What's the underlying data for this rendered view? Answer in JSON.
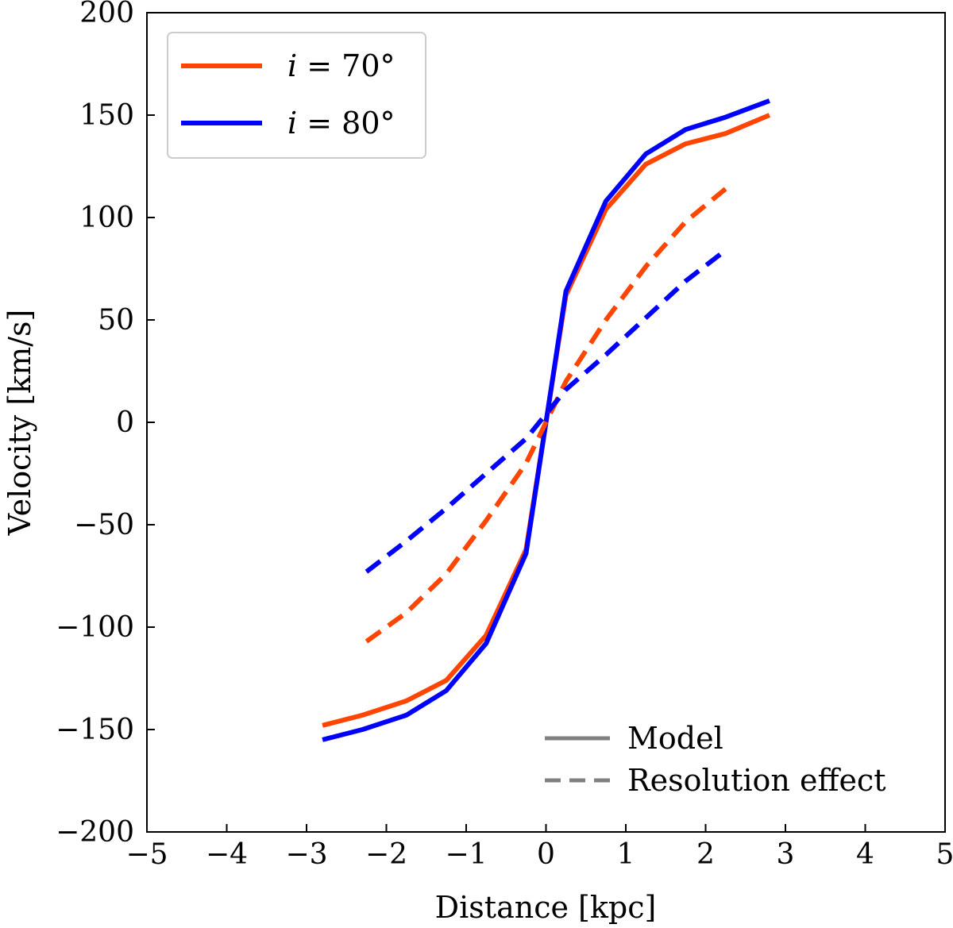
{
  "chart_data": {
    "type": "line",
    "xlabel": "Distance [kpc]",
    "ylabel": "Velocity [km/s]",
    "xlim": [
      -5,
      5
    ],
    "ylim": [
      -200,
      200
    ],
    "xticks": [
      -5,
      -4,
      -3,
      -2,
      -1,
      0,
      1,
      2,
      3,
      4,
      5
    ],
    "yticks": [
      -200,
      -150,
      -100,
      -50,
      0,
      50,
      100,
      150,
      200
    ],
    "xtick_labels": [
      "−5",
      "−4",
      "−3",
      "−2",
      "−1",
      "0",
      "1",
      "2",
      "3",
      "4",
      "5"
    ],
    "ytick_labels": [
      "−200",
      "−150",
      "−100",
      "−50",
      "0",
      "50",
      "100",
      "150",
      "200"
    ],
    "grid": false,
    "series": [
      {
        "name": "i = 70°",
        "variant": "Model",
        "color": "#ff4500",
        "style": "solid",
        "x": [
          -2.8,
          -2.3,
          -1.75,
          -1.25,
          -0.75,
          -0.25,
          0.0,
          0.25,
          0.75,
          1.25,
          1.75,
          2.25,
          2.8
        ],
        "y": [
          -148,
          -143,
          -136,
          -126,
          -104,
          -62,
          0,
          62,
          104,
          126,
          136,
          141,
          150
        ]
      },
      {
        "name": "i = 80°",
        "variant": "Model",
        "color": "#0000ff",
        "style": "solid",
        "x": [
          -2.8,
          -2.3,
          -1.75,
          -1.25,
          -0.75,
          -0.25,
          0.0,
          0.25,
          0.75,
          1.25,
          1.75,
          2.25,
          2.8
        ],
        "y": [
          -155,
          -150,
          -143,
          -131,
          -108,
          -64,
          0,
          64,
          108,
          131,
          143,
          149,
          157
        ]
      },
      {
        "name": "i = 70°",
        "variant": "Resolution effect",
        "color": "#ff4500",
        "style": "dashed",
        "x": [
          -2.25,
          -1.75,
          -1.25,
          -0.75,
          -0.25,
          0.25,
          0.75,
          1.25,
          1.75,
          2.25
        ],
        "y": [
          -107,
          -93,
          -74,
          -48,
          -20,
          20,
          50,
          76,
          98,
          114
        ]
      },
      {
        "name": "i = 80°",
        "variant": "Resolution effect",
        "color": "#0000ff",
        "style": "dashed",
        "x": [
          -2.25,
          -1.75,
          -1.25,
          -0.75,
          -0.25,
          0.25,
          0.75,
          1.25,
          1.75,
          2.25
        ],
        "y": [
          -73,
          -58,
          -42,
          -25,
          -8,
          16,
          33,
          51,
          69,
          84
        ]
      }
    ],
    "legend_colors": [
      {
        "label_prefix": "i",
        "label_rest": " = 70°",
        "color": "#ff4500"
      },
      {
        "label_prefix": "i",
        "label_rest": " = 80°",
        "color": "#0000ff"
      }
    ],
    "legend_styles": [
      {
        "label": "Model",
        "style": "solid",
        "color": "#808080"
      },
      {
        "label": "Resolution effect",
        "style": "dashed",
        "color": "#808080"
      }
    ],
    "legend_placement": [
      "top-left",
      "bottom-right"
    ]
  }
}
